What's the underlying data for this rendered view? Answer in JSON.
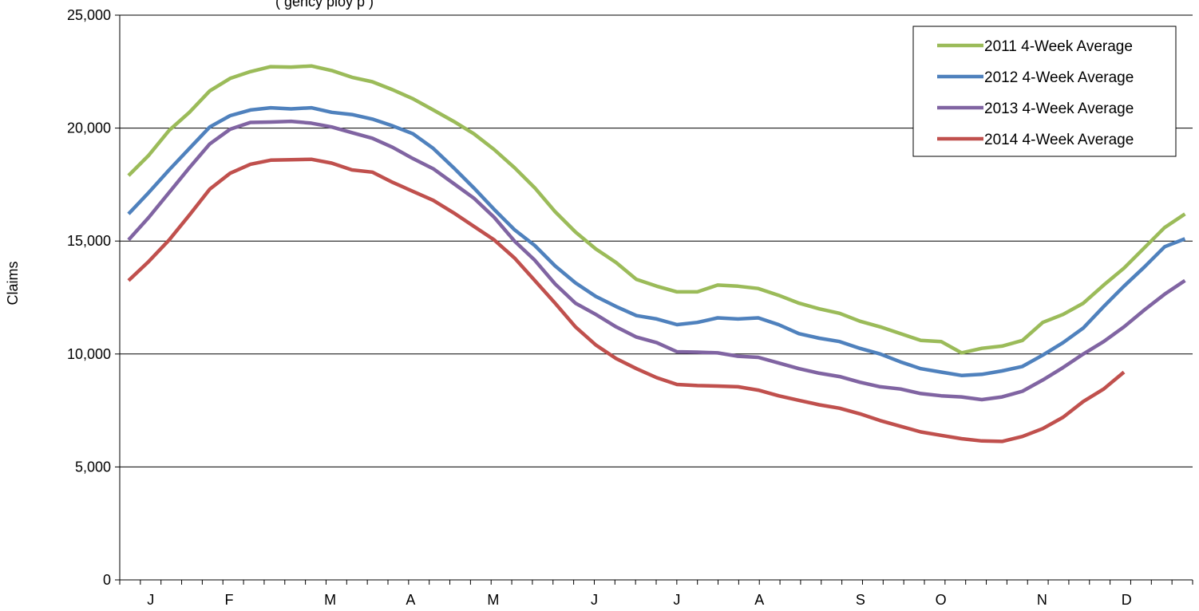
{
  "chart_data": {
    "type": "line",
    "subtitle": "(                                    gency                ploy                         p                           )",
    "ylabel": "Claims",
    "ylim": [
      0,
      25000
    ],
    "yticks": [
      0,
      5000,
      10000,
      15000,
      20000,
      25000
    ],
    "ytick_labels": [
      "0",
      "5,000",
      "10,000",
      "15,000",
      "20,000",
      "25,000"
    ],
    "x_week_count": 52,
    "month_labels": [
      "J",
      "F",
      "M",
      "A",
      "M",
      "J",
      "J",
      "A",
      "S",
      "O",
      "N",
      "D"
    ],
    "grid": "horizontal",
    "legend_position": "top-right",
    "series": [
      {
        "name": "2011 4-Week Average",
        "color": "#9BBB59",
        "values": [
          17900,
          18800,
          19900,
          20700,
          21650,
          22200,
          22500,
          22720,
          22700,
          22750,
          22550,
          22250,
          22050,
          21700,
          21300,
          20800,
          20300,
          19750,
          19050,
          18250,
          17350,
          16300,
          15400,
          14650,
          14050,
          13300,
          13000,
          12750,
          12750,
          13050,
          13000,
          12900,
          12600,
          12250,
          12000,
          11800,
          11450,
          11200,
          10900,
          10600,
          10550,
          10050,
          10250,
          10350,
          10600,
          11400,
          11750,
          12250,
          13050,
          13800,
          14700,
          15600,
          16200
        ]
      },
      {
        "name": "2012 4-Week Average",
        "color": "#4F81BD",
        "values": [
          16200,
          17150,
          18150,
          19100,
          20050,
          20550,
          20800,
          20900,
          20850,
          20900,
          20700,
          20600,
          20400,
          20100,
          19750,
          19100,
          18250,
          17350,
          16400,
          15500,
          14800,
          13900,
          13150,
          12550,
          12100,
          11700,
          11550,
          11300,
          11400,
          11600,
          11550,
          11600,
          11300,
          10900,
          10700,
          10550,
          10250,
          10000,
          9650,
          9350,
          9200,
          9050,
          9100,
          9250,
          9450,
          9950,
          10500,
          11150,
          12100,
          13000,
          13850,
          14750,
          15100
        ]
      },
      {
        "name": "2013 4-Week Average",
        "color": "#8064A2",
        "values": [
          15050,
          16050,
          17150,
          18250,
          19300,
          19950,
          20250,
          20270,
          20300,
          20220,
          20050,
          19800,
          19550,
          19150,
          18650,
          18200,
          17550,
          16900,
          16050,
          15000,
          14150,
          13100,
          12250,
          11750,
          11200,
          10750,
          10500,
          10100,
          10080,
          10050,
          9900,
          9850,
          9600,
          9350,
          9150,
          9000,
          8750,
          8550,
          8450,
          8250,
          8150,
          8100,
          7980,
          8100,
          8350,
          8850,
          9400,
          10000,
          10550,
          11200,
          11950,
          12650,
          13250
        ]
      },
      {
        "name": "2014 4-Week Average",
        "color": "#C0504D",
        "values": [
          13250,
          14100,
          15050,
          16150,
          17300,
          18000,
          18400,
          18580,
          18600,
          18620,
          18450,
          18150,
          18050,
          17600,
          17200,
          16800,
          16250,
          15650,
          15050,
          14250,
          13250,
          12250,
          11200,
          10400,
          9800,
          9350,
          8950,
          8650,
          8600,
          8580,
          8550,
          8400,
          8150,
          7950,
          7750,
          7600,
          7350,
          7050,
          6800,
          6550,
          6400,
          6250,
          6150,
          6130,
          6350,
          6700,
          7200,
          7900,
          8450,
          9200
        ]
      }
    ]
  }
}
